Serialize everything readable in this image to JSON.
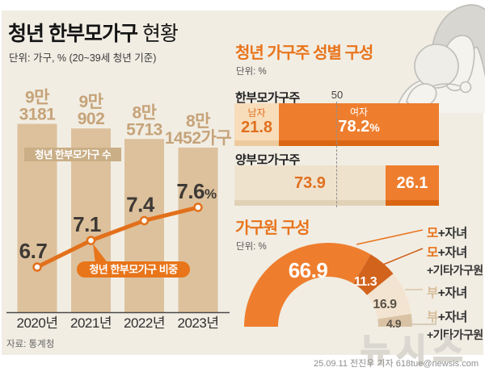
{
  "page": {
    "title_strong": "청년 한부모가구",
    "title_rest": " 현황",
    "subtitle": "단위: 가구, % (20~39세 청년 기준)",
    "source": "자료: 통계청",
    "credit": "25.09.11 전진우 기자 618tue@newsis.com",
    "watermark": "뉴시스"
  },
  "colors": {
    "accent_orange": "#e8741c",
    "bar_tan": "#ddc19c",
    "bar_value_text": "#c6a379",
    "badge_tan": "#c9ae86",
    "line_orange": "#e2701b",
    "dark_text": "#3d3935",
    "background": "#f1ede3"
  },
  "chart_data": [
    {
      "name": "청년 한부모가구 추이",
      "type": "bar+line",
      "categories": [
        "2020년",
        "2021년",
        "2022년",
        "2023년"
      ],
      "series": [
        {
          "name": "청년 한부모가구 수",
          "type": "bar",
          "values": [
            93181,
            90902,
            85713,
            81452
          ],
          "value_labels": [
            [
              "9만",
              "3181"
            ],
            [
              "9만",
              "902"
            ],
            [
              "8만",
              "5713"
            ],
            [
              "8만",
              "1452가구"
            ]
          ],
          "color": "#ddc19c"
        },
        {
          "name": "청년 한부모가구 비중",
          "type": "line",
          "values": [
            6.7,
            7.1,
            7.4,
            7.6
          ],
          "value_labels": [
            "6.7",
            "7.1",
            "7.4",
            "7.6%"
          ],
          "color": "#e2701b"
        }
      ],
      "badge_bar": "청년 한부모가구 수",
      "badge_line": "청년 한부모가구 비중"
    },
    {
      "name": "청년 가구주 성별 구성",
      "type": "stacked-bar",
      "title_light": "청년 가구주 ",
      "title_bold": "성별 구성",
      "unit": "단위: %",
      "axis_mark": "50",
      "rows": [
        {
          "label": "한부모가구주",
          "segments": [
            {
              "name": "남자",
              "value": 21.8,
              "display": "21.8"
            },
            {
              "name": "여자",
              "value": 78.2,
              "display": "78.2",
              "suffix": "%"
            }
          ]
        },
        {
          "label": "양부모가구주",
          "segments": [
            {
              "name": "",
              "value": 73.9,
              "display": "73.9"
            },
            {
              "name": "",
              "value": 26.1,
              "display": "26.1"
            }
          ]
        }
      ]
    },
    {
      "name": "가구원 구성",
      "type": "donut",
      "title": "가구원 구성",
      "unit": "단위: %",
      "values": [
        66.9,
        11.3,
        16.9,
        4.9
      ],
      "labels": [
        "모+자녀",
        "모+자녀+기타가구원",
        "부+자녀",
        "부+자녀+기타가구원"
      ],
      "colors": [
        "#ee7e2e",
        "#d2631d",
        "#f2e4d0",
        "#d9c3a4"
      ]
    }
  ],
  "legend": {
    "items": [
      {
        "prefix": "모",
        "rest": "+자녀",
        "line2": ""
      },
      {
        "prefix": "모",
        "rest": "+자녀",
        "line2": "+기타가구원"
      },
      {
        "prefix": "부",
        "rest": "+자녀",
        "line2": ""
      },
      {
        "prefix": "부",
        "rest": "+자녀",
        "line2": "+기타가구원"
      }
    ]
  }
}
